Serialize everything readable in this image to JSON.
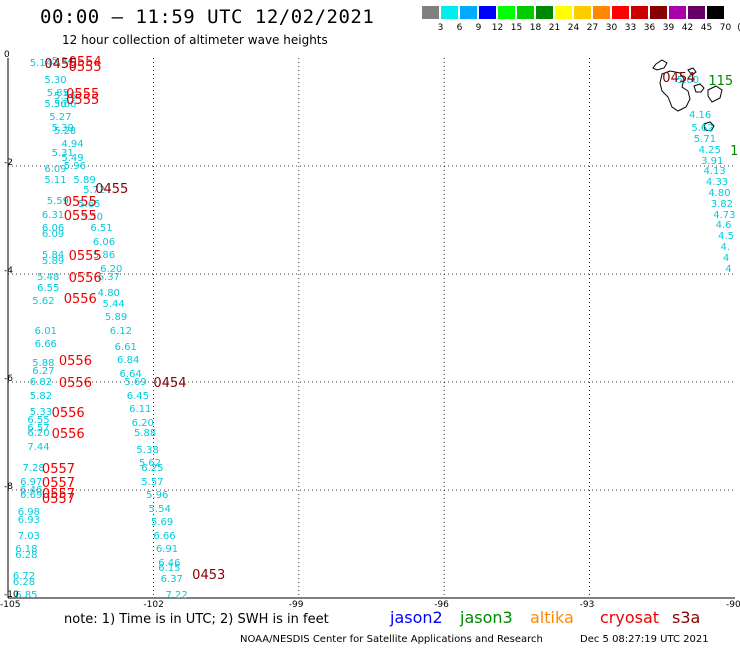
{
  "header": {
    "title": "00:00 – 11:59 UTC 12/02/2021",
    "subtitle": "12 hour collection of altimeter wave heights"
  },
  "legend": {
    "unit": "(ft)",
    "bins": [
      {
        "label": "3",
        "color": "#808080"
      },
      {
        "label": "6",
        "color": "#00eeee"
      },
      {
        "label": "9",
        "color": "#00aaff"
      },
      {
        "label": "12",
        "color": "#0000ff"
      },
      {
        "label": "15",
        "color": "#00ff00"
      },
      {
        "label": "18",
        "color": "#00cc00"
      },
      {
        "label": "21",
        "color": "#008800"
      },
      {
        "label": "24",
        "color": "#ffff00"
      },
      {
        "label": "27",
        "color": "#ffcc00"
      },
      {
        "label": "30",
        "color": "#ff8800"
      },
      {
        "label": "33",
        "color": "#ff0000"
      },
      {
        "label": "36",
        "color": "#cc0000"
      },
      {
        "label": "39",
        "color": "#880000"
      },
      {
        "label": "42",
        "color": "#aa00aa"
      },
      {
        "label": "45",
        "color": "#660066"
      },
      {
        "label": "70",
        "color": "#000000"
      }
    ]
  },
  "axes": {
    "lon_ticks": [
      "-105",
      "-102",
      "-99",
      "-96",
      "-93",
      "-90"
    ],
    "lat_ticks": [
      "0",
      "-2",
      "-4",
      "-6",
      "-8",
      "-10"
    ]
  },
  "colors": {
    "cyan": "#00ccdd",
    "red": "#ee0000",
    "darkred": "#880000",
    "green": "#008800"
  },
  "observations": [
    {
      "v": "5.14",
      "lon": -104.55,
      "lat": -0.1
    },
    {
      "v": "5.34",
      "lon": -104.1,
      "lat": -0.05
    },
    {
      "v": "5.30",
      "lon": -104.25,
      "lat": -0.4
    },
    {
      "v": "5.85",
      "lon": -104.2,
      "lat": -0.65
    },
    {
      "v": "5.56",
      "lon": -104.05,
      "lat": -0.7
    },
    {
      "v": "5.36",
      "lon": -104.25,
      "lat": -0.85
    },
    {
      "v": "5.66",
      "lon": -104.05,
      "lat": -0.85
    },
    {
      "v": "5.27",
      "lon": -104.15,
      "lat": -1.1
    },
    {
      "v": "5.39",
      "lon": -104.1,
      "lat": -1.3
    },
    {
      "v": "5.28",
      "lon": -104.05,
      "lat": -1.35
    },
    {
      "v": "4.94",
      "lon": -103.9,
      "lat": -1.6
    },
    {
      "v": "5.31",
      "lon": -104.1,
      "lat": -1.75
    },
    {
      "v": "5.49",
      "lon": -103.9,
      "lat": -1.85
    },
    {
      "v": "6.09",
      "lon": -104.25,
      "lat": -2.05
    },
    {
      "v": "5.96",
      "lon": -103.85,
      "lat": -2.0
    },
    {
      "v": "5.11",
      "lon": -104.25,
      "lat": -2.25
    },
    {
      "v": "5.89",
      "lon": -103.65,
      "lat": -2.25
    },
    {
      "v": "5.72",
      "lon": -103.45,
      "lat": -2.45
    },
    {
      "v": "5.59",
      "lon": -104.2,
      "lat": -2.65
    },
    {
      "v": "5.65",
      "lon": -103.55,
      "lat": -2.7
    },
    {
      "v": "6.31",
      "lon": -104.3,
      "lat": -2.9
    },
    {
      "v": "5.50",
      "lon": -103.5,
      "lat": -2.95
    },
    {
      "v": "6.06",
      "lon": -104.3,
      "lat": -3.15
    },
    {
      "v": "6.51",
      "lon": -103.3,
      "lat": -3.15
    },
    {
      "v": "6.09",
      "lon": -104.3,
      "lat": -3.25
    },
    {
      "v": "6.06",
      "lon": -103.25,
      "lat": -3.4
    },
    {
      "v": "5.84",
      "lon": -104.3,
      "lat": -3.65
    },
    {
      "v": "5.86",
      "lon": -103.25,
      "lat": -3.65
    },
    {
      "v": "5.89",
      "lon": -104.3,
      "lat": -3.75
    },
    {
      "v": "6.20",
      "lon": -103.1,
      "lat": -3.9
    },
    {
      "v": "5.48",
      "lon": -104.4,
      "lat": -4.05
    },
    {
      "v": "6.37",
      "lon": -103.15,
      "lat": -4.05
    },
    {
      "v": "6.55",
      "lon": -104.4,
      "lat": -4.25
    },
    {
      "v": "4.80",
      "lon": -103.15,
      "lat": -4.35
    },
    {
      "v": "5.62",
      "lon": -104.5,
      "lat": -4.5
    },
    {
      "v": "5.44",
      "lon": -103.05,
      "lat": -4.55
    },
    {
      "v": "5.89",
      "lon": -103.0,
      "lat": -4.8
    },
    {
      "v": "6.01",
      "lon": -104.45,
      "lat": -5.05
    },
    {
      "v": "6.12",
      "lon": -102.9,
      "lat": -5.05
    },
    {
      "v": "6.66",
      "lon": -104.45,
      "lat": -5.3
    },
    {
      "v": "6.61",
      "lon": -102.8,
      "lat": -5.35
    },
    {
      "v": "5.88",
      "lon": -104.5,
      "lat": -5.65
    },
    {
      "v": "6.84",
      "lon": -102.75,
      "lat": -5.6
    },
    {
      "v": "6.27",
      "lon": -104.5,
      "lat": -5.8
    },
    {
      "v": "6.64",
      "lon": -102.7,
      "lat": -5.85
    },
    {
      "v": "6.82",
      "lon": -104.55,
      "lat": -6.0
    },
    {
      "v": "5.69",
      "lon": -102.6,
      "lat": -6.0
    },
    {
      "v": "5.82",
      "lon": -104.55,
      "lat": -6.25
    },
    {
      "v": "6.45",
      "lon": -102.55,
      "lat": -6.25
    },
    {
      "v": "5.33",
      "lon": -104.55,
      "lat": -6.55
    },
    {
      "v": "6.11",
      "lon": -102.5,
      "lat": -6.5
    },
    {
      "v": "6.55",
      "lon": -104.6,
      "lat": -6.7
    },
    {
      "v": "6.20",
      "lon": -102.45,
      "lat": -6.75
    },
    {
      "v": "6.57",
      "lon": -104.6,
      "lat": -6.85
    },
    {
      "v": "6.20",
      "lon": -104.6,
      "lat": -6.95
    },
    {
      "v": "5.88",
      "lon": -102.4,
      "lat": -6.95
    },
    {
      "v": "7.44",
      "lon": -104.6,
      "lat": -7.2
    },
    {
      "v": "5.38",
      "lon": -102.35,
      "lat": -7.25
    },
    {
      "v": "5.62",
      "lon": -102.3,
      "lat": -7.5
    },
    {
      "v": "7.28",
      "lon": -104.7,
      "lat": -7.6
    },
    {
      "v": "6.25",
      "lon": -102.25,
      "lat": -7.6
    },
    {
      "v": "6.97",
      "lon": -104.75,
      "lat": -7.85
    },
    {
      "v": "5.57",
      "lon": -102.25,
      "lat": -7.85
    },
    {
      "v": "6.46",
      "lon": -104.75,
      "lat": -8.0
    },
    {
      "v": "6.69",
      "lon": -104.75,
      "lat": -8.1
    },
    {
      "v": "5.96",
      "lon": -102.15,
      "lat": -8.1
    },
    {
      "v": "6.98",
      "lon": -104.8,
      "lat": -8.4
    },
    {
      "v": "5.54",
      "lon": -102.1,
      "lat": -8.35
    },
    {
      "v": "6.93",
      "lon": -104.8,
      "lat": -8.55
    },
    {
      "v": "5.69",
      "lon": -102.05,
      "lat": -8.6
    },
    {
      "v": "7.03",
      "lon": -104.8,
      "lat": -8.85
    },
    {
      "v": "6.66",
      "lon": -102.0,
      "lat": -8.85
    },
    {
      "v": "6.18",
      "lon": -104.85,
      "lat": -9.1
    },
    {
      "v": "6.91",
      "lon": -101.95,
      "lat": -9.1
    },
    {
      "v": "6.28",
      "lon": -104.85,
      "lat": -9.2
    },
    {
      "v": "6.46",
      "lon": -101.9,
      "lat": -9.35
    },
    {
      "v": "6.15",
      "lon": -101.9,
      "lat": -9.45
    },
    {
      "v": "6.72",
      "lon": -104.9,
      "lat": -9.6
    },
    {
      "v": "6.37",
      "lon": -101.85,
      "lat": -9.65
    },
    {
      "v": "6.28",
      "lon": -104.9,
      "lat": -9.7
    },
    {
      "v": "6.85",
      "lon": -104.85,
      "lat": -9.95
    },
    {
      "v": "7.22",
      "lon": -101.75,
      "lat": -9.95
    },
    {
      "v": "5.60",
      "lon": -91.2,
      "lat": -0.4
    },
    {
      "v": "4.16",
      "lon": -90.95,
      "lat": -1.05
    },
    {
      "v": "5.62",
      "lon": -90.9,
      "lat": -1.3
    },
    {
      "v": "5.71",
      "lon": -90.85,
      "lat": -1.5
    },
    {
      "v": "4.25",
      "lon": -90.75,
      "lat": -1.7
    },
    {
      "v": "3.91",
      "lon": -90.7,
      "lat": -1.9
    },
    {
      "v": "4.13",
      "lon": -90.65,
      "lat": -2.1
    },
    {
      "v": "4.33",
      "lon": -90.6,
      "lat": -2.3
    },
    {
      "v": "4.80",
      "lon": -90.55,
      "lat": -2.5
    },
    {
      "v": "3.82",
      "lon": -90.5,
      "lat": -2.7
    },
    {
      "v": "4.73",
      "lon": -90.45,
      "lat": -2.9
    },
    {
      "v": "4.6",
      "lon": -90.4,
      "lat": -3.1
    },
    {
      "v": "4.5",
      "lon": -90.35,
      "lat": -3.3
    },
    {
      "v": "4.",
      "lon": -90.3,
      "lat": -3.5
    },
    {
      "v": "4",
      "lon": -90.25,
      "lat": -3.7
    },
    {
      "v": "4",
      "lon": -90.2,
      "lat": -3.9
    }
  ],
  "times": [
    {
      "t": "0554",
      "lon": -103.75,
      "lat": -0.05,
      "c": "red"
    },
    {
      "t": "0455",
      "lon": -104.25,
      "lat": -0.1,
      "c": "darkred"
    },
    {
      "t": "0555",
      "lon": -103.75,
      "lat": -0.15,
      "c": "red"
    },
    {
      "t": "0555",
      "lon": -103.8,
      "lat": -0.65,
      "c": "red"
    },
    {
      "t": "0555",
      "lon": -103.8,
      "lat": -0.75,
      "c": "red"
    },
    {
      "t": "0455",
      "lon": -103.2,
      "lat": -2.4,
      "c": "darkred"
    },
    {
      "t": "0555",
      "lon": -103.85,
      "lat": -2.65,
      "c": "red"
    },
    {
      "t": "0555",
      "lon": -103.85,
      "lat": -2.9,
      "c": "red"
    },
    {
      "t": "0555",
      "lon": -103.75,
      "lat": -3.65,
      "c": "red"
    },
    {
      "t": "0556",
      "lon": -103.75,
      "lat": -4.05,
      "c": "red"
    },
    {
      "t": "0556",
      "lon": -103.85,
      "lat": -4.45,
      "c": "red"
    },
    {
      "t": "0556",
      "lon": -103.95,
      "lat": -5.6,
      "c": "red"
    },
    {
      "t": "0556",
      "lon": -103.95,
      "lat": -6.0,
      "c": "red"
    },
    {
      "t": "0454",
      "lon": -102.0,
      "lat": -6.0,
      "c": "darkred"
    },
    {
      "t": "0556",
      "lon": -104.1,
      "lat": -6.55,
      "c": "red"
    },
    {
      "t": "0556",
      "lon": -104.1,
      "lat": -6.95,
      "c": "red"
    },
    {
      "t": "0557",
      "lon": -104.3,
      "lat": -7.6,
      "c": "red"
    },
    {
      "t": "0557",
      "lon": -104.3,
      "lat": -7.85,
      "c": "red"
    },
    {
      "t": "0557",
      "lon": -104.3,
      "lat": -8.05,
      "c": "red"
    },
    {
      "t": "0557",
      "lon": -104.3,
      "lat": -8.15,
      "c": "red"
    },
    {
      "t": "0453",
      "lon": -101.2,
      "lat": -9.55,
      "c": "darkred"
    },
    {
      "t": "0454",
      "lon": -91.5,
      "lat": -0.35,
      "c": "darkred"
    },
    {
      "t": "115",
      "lon": -90.55,
      "lat": -0.4,
      "c": "green"
    },
    {
      "t": "1",
      "lon": -90.1,
      "lat": -1.7,
      "c": "green"
    }
  ],
  "note": "note:  1) Time is in UTC;  2) SWH is in feet",
  "satellites": [
    {
      "name": "jason2",
      "color": "#0000ff"
    },
    {
      "name": "jason3",
      "color": "#008800"
    },
    {
      "name": "altika",
      "color": "#ff8800"
    },
    {
      "name": "cryosat",
      "color": "#ee0000"
    },
    {
      "name": "s3a",
      "color": "#880000"
    }
  ],
  "footer": {
    "credit": "NOAA/NESDIS Center for Satellite Applications and Research",
    "stamp": "Dec  5 08:27:19 UTC 2021"
  }
}
